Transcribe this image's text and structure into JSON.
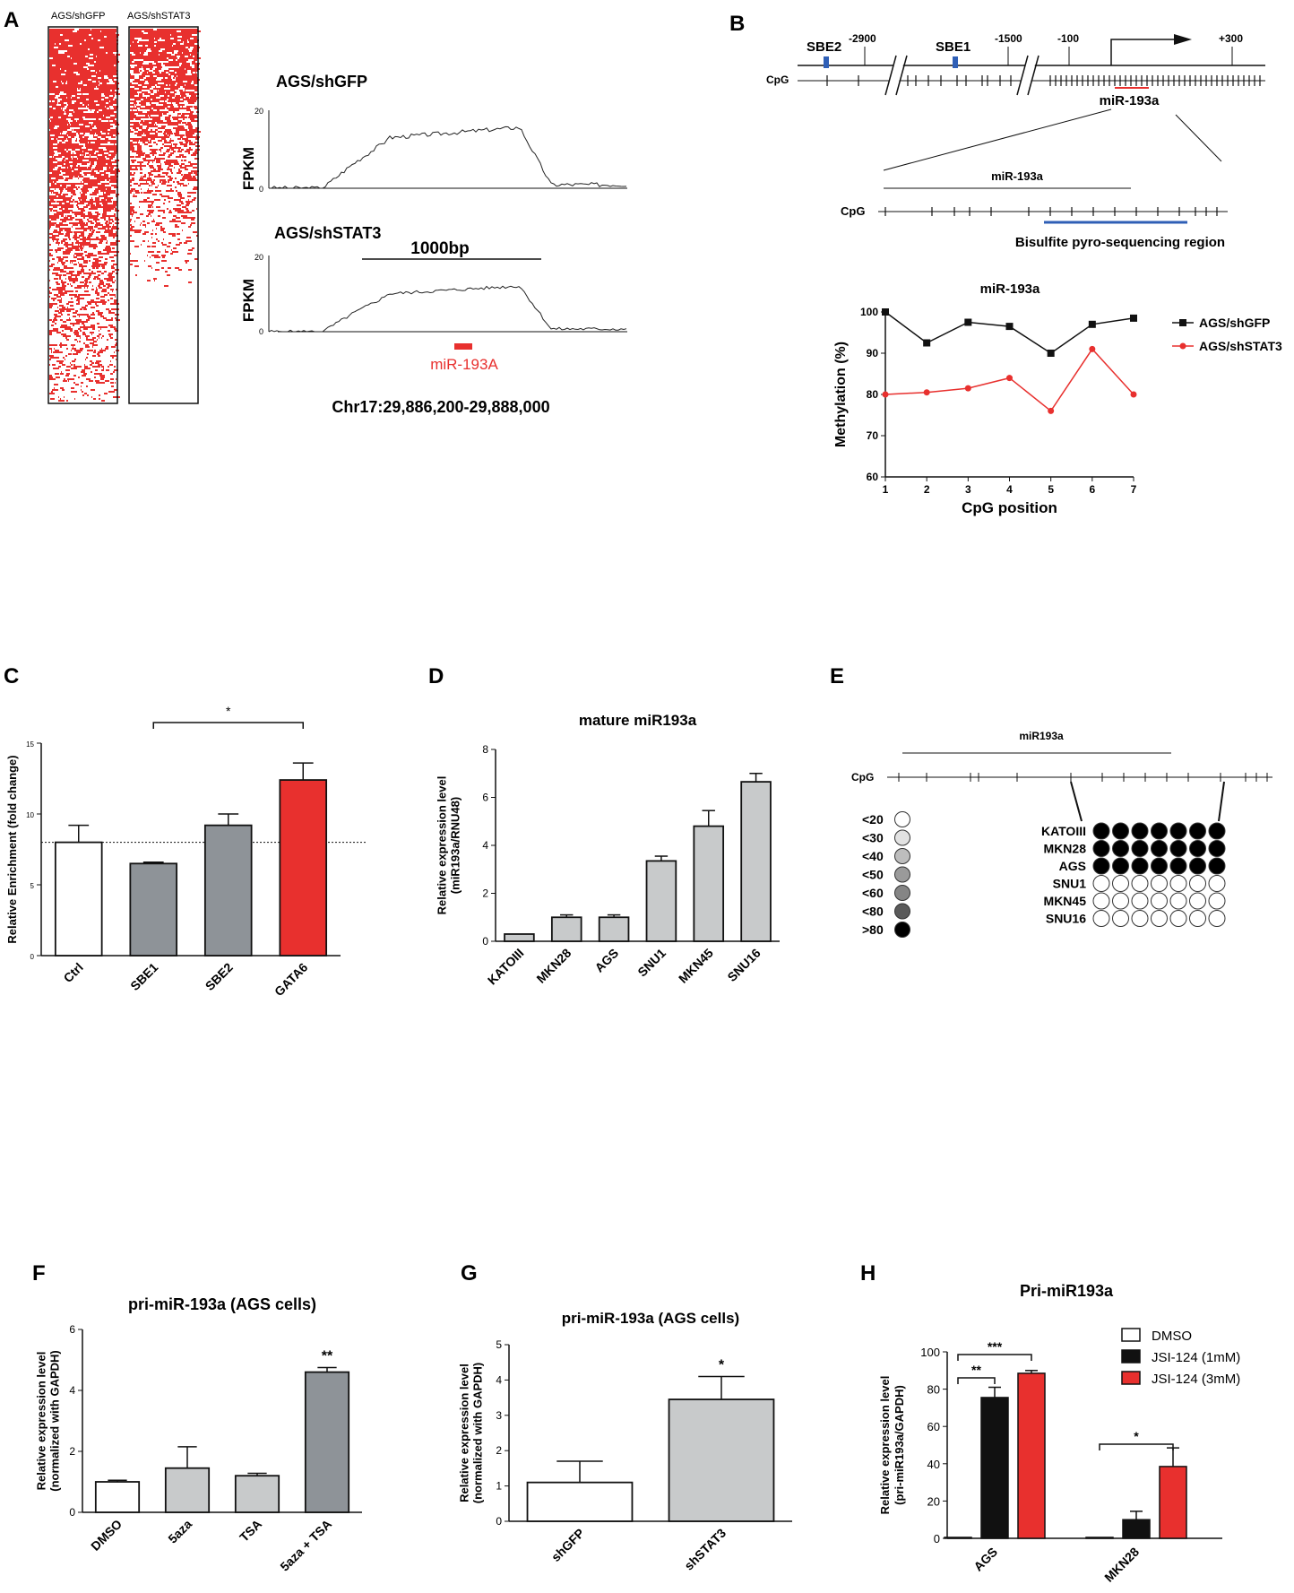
{
  "panels": {
    "A": "A",
    "B": "B",
    "C": "C",
    "D": "D",
    "E": "E",
    "F": "F",
    "G": "G",
    "H": "H"
  },
  "colors": {
    "red": "#e8302e",
    "grey": "#8e9398",
    "lightgrey": "#c8cacb",
    "black": "#111111",
    "blue": "#2f5fb6",
    "white": "#ffffff"
  },
  "panelA": {
    "heatmap_labels": [
      "AGS/shGFP",
      "AGS/shSTAT3"
    ],
    "track1": {
      "title": "AGS/shGFP",
      "ylabel": "FPKM",
      "ymax": "20",
      "ymin": "0"
    },
    "track2": {
      "title": "AGS/shSTAT3",
      "ylabel": "FPKM",
      "ymax": "20",
      "ymin": "0"
    },
    "scalebar": "1000bp",
    "gene": "miR-193A",
    "coords": "Chr17:29,886,200-29,888,000"
  },
  "panelB": {
    "positions": [
      "-2900",
      "-1500",
      "-100",
      "+300"
    ],
    "sbe": [
      "SBE2",
      "SBE1"
    ],
    "cpg": "CpG",
    "gene": "miR-193a",
    "zoom_gene": "miR-193a",
    "zoom_cpg": "CpG",
    "region": "Bisulfite pyro-sequencing region"
  },
  "chart_data": [
    {
      "id": "B-methylation",
      "type": "line",
      "title": "miR-193a",
      "xlabel": "CpG position",
      "ylabel": "Methylation (%)",
      "x": [
        1,
        2,
        3,
        4,
        5,
        6,
        7
      ],
      "ylim": [
        60,
        100
      ],
      "yticks": [
        60,
        70,
        80,
        90,
        100
      ],
      "series": [
        {
          "name": "AGS/shGFP",
          "color": "#111111",
          "marker": "square",
          "values": [
            100,
            92.5,
            97.5,
            96.5,
            90,
            97,
            98.5
          ]
        },
        {
          "name": "AGS/shSTAT3",
          "color": "#e8302e",
          "marker": "circle",
          "values": [
            80,
            80.5,
            81.5,
            84,
            76,
            91,
            80
          ]
        }
      ],
      "legend": "right"
    },
    {
      "id": "C",
      "type": "bar",
      "title": "",
      "xlabel": "",
      "ylabel": "Relative Enrichment (fold change)",
      "categories": [
        "Ctrl",
        "SBE1",
        "SBE2",
        "GATA6"
      ],
      "values": [
        8,
        6.5,
        9.2,
        12.4
      ],
      "errors": [
        1.2,
        0.1,
        0.8,
        1.2
      ],
      "colors": [
        "#ffffff",
        "#8e9398",
        "#8e9398",
        "#e8302e"
      ],
      "ylim": [
        0,
        15
      ],
      "yticks": [
        0,
        5,
        10,
        15
      ],
      "reference_line": 8,
      "significance": [
        {
          "from": "SBE1",
          "to": "GATA6",
          "label": "*"
        }
      ]
    },
    {
      "id": "D",
      "type": "bar",
      "title": "mature miR193a",
      "xlabel": "",
      "ylabel": "Relative expression level (miR193a/RNU48)",
      "categories": [
        "KATOIII",
        "MKN28",
        "AGS",
        "SNU1",
        "MKN45",
        "SNU16"
      ],
      "values": [
        0.3,
        1.0,
        1.0,
        3.35,
        4.8,
        6.65
      ],
      "errors": [
        0,
        0.1,
        0.1,
        0.2,
        0.65,
        0.35
      ],
      "colors": [
        "#c8cacb",
        "#c8cacb",
        "#c8cacb",
        "#c8cacb",
        "#c8cacb",
        "#c8cacb"
      ],
      "ylim": [
        0,
        8
      ],
      "yticks": [
        0,
        2,
        4,
        6,
        8
      ]
    },
    {
      "id": "E",
      "type": "table",
      "title": "miR193a",
      "xlabel": "CpG",
      "ylabel": "",
      "legend_labels": [
        "<20",
        "<30",
        "<40",
        "<50",
        "<60",
        "<80",
        ">80"
      ],
      "legend_colors": [
        "#ffffff",
        "#e2e2e2",
        "#bdbdbd",
        "#9a9a9a",
        "#858585",
        "#5a5a5a",
        "#000000"
      ],
      "rows": [
        "KATOIII",
        "MKN28",
        "AGS",
        "SNU1",
        "MKN45",
        "SNU16"
      ],
      "methylated": [
        true,
        true,
        true,
        false,
        false,
        false
      ],
      "columns": 7
    },
    {
      "id": "F",
      "type": "bar",
      "title": "pri-miR-193a (AGS cells)",
      "xlabel": "",
      "ylabel": "Relative expression level (normalized with GAPDH)",
      "categories": [
        "DMSO",
        "5aza",
        "TSA",
        "5aza + TSA"
      ],
      "values": [
        1.0,
        1.45,
        1.2,
        4.6
      ],
      "errors": [
        0.05,
        0.7,
        0.08,
        0.15
      ],
      "colors": [
        "#ffffff",
        "#c8cacb",
        "#c8cacb",
        "#8e9398"
      ],
      "ylim": [
        0,
        6
      ],
      "yticks": [
        0,
        2,
        4,
        6
      ],
      "significance": [
        {
          "over": "5aza + TSA",
          "label": "**"
        }
      ]
    },
    {
      "id": "G",
      "type": "bar",
      "title": "pri-miR-193a (AGS cells)",
      "xlabel": "",
      "ylabel": "Relative expression level (normalized with GAPDH)",
      "categories": [
        "shGFP",
        "shSTAT3"
      ],
      "values": [
        1.1,
        3.45
      ],
      "errors": [
        0.6,
        0.65
      ],
      "colors": [
        "#ffffff",
        "#c8cacb"
      ],
      "ylim": [
        0,
        5
      ],
      "yticks": [
        0,
        1,
        2,
        3,
        4,
        5
      ],
      "significance": [
        {
          "over": "shSTAT3",
          "label": "*"
        }
      ]
    },
    {
      "id": "H",
      "type": "bar",
      "title": "Pri-miR193a",
      "xlabel": "",
      "ylabel": "Relative expression level (pri-miR193a/GAPDH)",
      "categories": [
        "AGS",
        "MKN28"
      ],
      "series": [
        {
          "name": "DMSO",
          "color": "#ffffff",
          "values": [
            0.5,
            0.5
          ],
          "errors": [
            0,
            0
          ]
        },
        {
          "name": "JSI-124 (1mM)",
          "color": "#111111",
          "values": [
            75.5,
            10
          ],
          "errors": [
            5.5,
            4.5
          ]
        },
        {
          "name": "JSI-124 (3mM)",
          "color": "#e8302e",
          "values": [
            88.5,
            38.5
          ],
          "errors": [
            1.5,
            10
          ]
        }
      ],
      "ylim": [
        0,
        100
      ],
      "yticks": [
        0,
        20,
        40,
        60,
        80,
        100
      ],
      "significance": [
        {
          "group": "AGS",
          "from": 0,
          "to": 1,
          "label": "**"
        },
        {
          "group": "AGS",
          "from": 0,
          "to": 2,
          "label": "***"
        },
        {
          "group": "MKN28",
          "from": 0,
          "to": 2,
          "label": "*"
        }
      ],
      "legend": "top-right"
    }
  ]
}
